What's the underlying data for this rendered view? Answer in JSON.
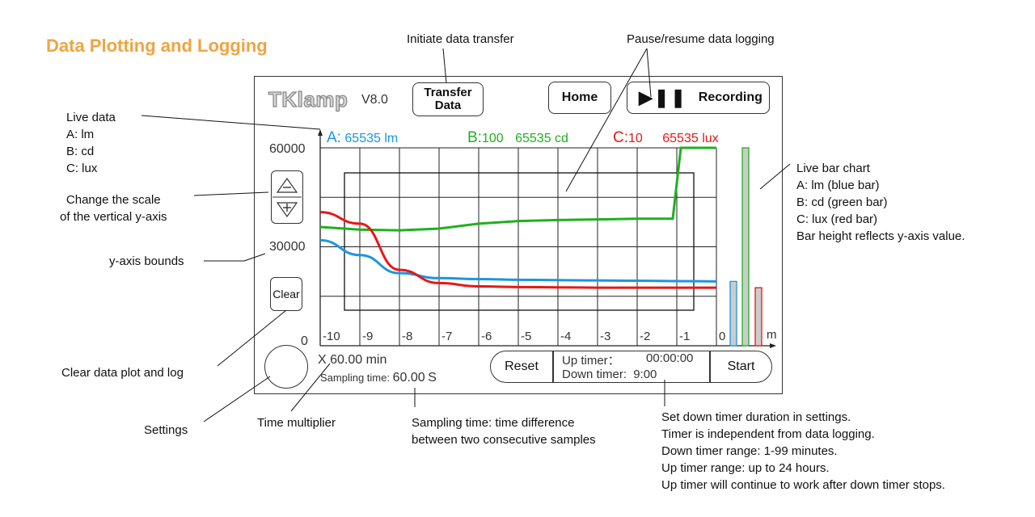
{
  "title": "Data Plotting and Logging",
  "device": {
    "logo": "TKlamp",
    "version": "V8.0",
    "transfer_label_1": "Transfer",
    "transfer_label_2": "Data",
    "home_label": "Home",
    "recording_label": "Recording",
    "play_pause_glyph": "▶❚❚",
    "live": {
      "a_prefix": "A:",
      "a_value": "65535 lm",
      "b_prefix": "B:",
      "b_scale": "100",
      "b_value": "65535 cd",
      "c_prefix": "C:",
      "c_scale": "10",
      "c_value": "65535 lux"
    },
    "y_top": "60000",
    "y_mid": "30000",
    "y_zero": "0",
    "clear_label": "Clear",
    "x_multiplier": "X  60.00 min",
    "sampling_label": "Sampling time:",
    "sampling_value": "60.00",
    "sampling_unit": "S",
    "reset_label": "Reset",
    "up_timer_label": "Up timer：",
    "up_timer_value": "00:00:00",
    "down_timer_label": "Down timer:",
    "down_timer_value": "9:00",
    "start_label": "Start",
    "colors": {
      "a": "#1a96e2",
      "b": "#1fb01f",
      "c": "#e81717"
    }
  },
  "chart_data": {
    "type": "line",
    "x": [
      -10,
      -9,
      -8,
      -7,
      -6,
      -5,
      -4,
      -3,
      -2,
      -1,
      0
    ],
    "x_tick_labels": [
      "-10",
      "-9",
      "-8",
      "-7",
      "-6",
      "-5",
      "-4",
      "-3",
      "-2",
      "-1",
      "0"
    ],
    "x_unit": "m",
    "ylim": [
      0,
      60000
    ],
    "series": [
      {
        "values": [
          32000,
          27500,
          22000,
          20500,
          20200,
          20000,
          19900,
          19800,
          19700,
          19600,
          19500
        ]
      },
      {
        "values": [
          36000,
          35200,
          35000,
          35500,
          37000,
          37800,
          38100,
          38300,
          38500,
          60000,
          60000
        ]
      },
      {
        "values": [
          40500,
          37000,
          23000,
          19000,
          18000,
          17800,
          17700,
          17600,
          17600,
          17600,
          17600
        ]
      }
    ],
    "bars": [
      19500,
      60000,
      17600
    ]
  },
  "annotations": {
    "initiate": "Initiate data transfer",
    "pause": "Pause/resume data logging",
    "live_data": [
      "Live data",
      "A: lm",
      "B: cd",
      "C: lux"
    ],
    "scale": [
      "Change the scale",
      "of the vertical y-axis"
    ],
    "bounds": "y-axis bounds",
    "clear": "Clear data plot and log",
    "settings": "Settings",
    "multiplier": "Time multiplier",
    "sampling": [
      "Sampling time: time difference",
      "between two consecutive samples"
    ],
    "bar_chart": [
      "Live bar chart",
      "A: lm (blue bar)",
      "B: cd (green bar)",
      "C: lux (red bar)",
      "Bar height reflects y-axis value."
    ],
    "timer": [
      "Set down timer duration in settings.",
      "Timer is independent from data logging.",
      "Down timer range: 1-99 minutes.",
      "Up timer range: up to 24 hours.",
      "Up timer will continue to work after down timer stops."
    ]
  }
}
